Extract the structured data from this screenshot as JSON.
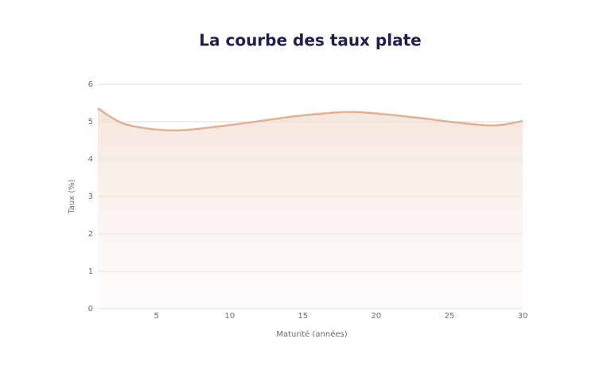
{
  "chart_data": {
    "type": "area",
    "title": "La courbe des taux plate",
    "x_label": "Maturité (années)",
    "y_label": "Taux (%)",
    "series": [
      {
        "name": "Taux",
        "color": "#dfb298",
        "x": [
          1,
          2,
          3,
          5,
          7,
          10,
          13,
          15,
          18,
          20,
          23,
          25,
          28,
          30
        ],
        "values": [
          5.36,
          5.1,
          4.92,
          4.79,
          4.78,
          4.91,
          5.07,
          5.17,
          5.26,
          5.22,
          5.1,
          5.0,
          4.9,
          5.02
        ]
      }
    ],
    "xlim": [
      1,
      30
    ],
    "xticks": [
      5,
      10,
      15,
      20,
      25,
      30
    ],
    "ylim": [
      0,
      6
    ],
    "yticks": [
      0,
      1,
      2,
      3,
      4,
      5,
      6
    ],
    "grid": true
  }
}
